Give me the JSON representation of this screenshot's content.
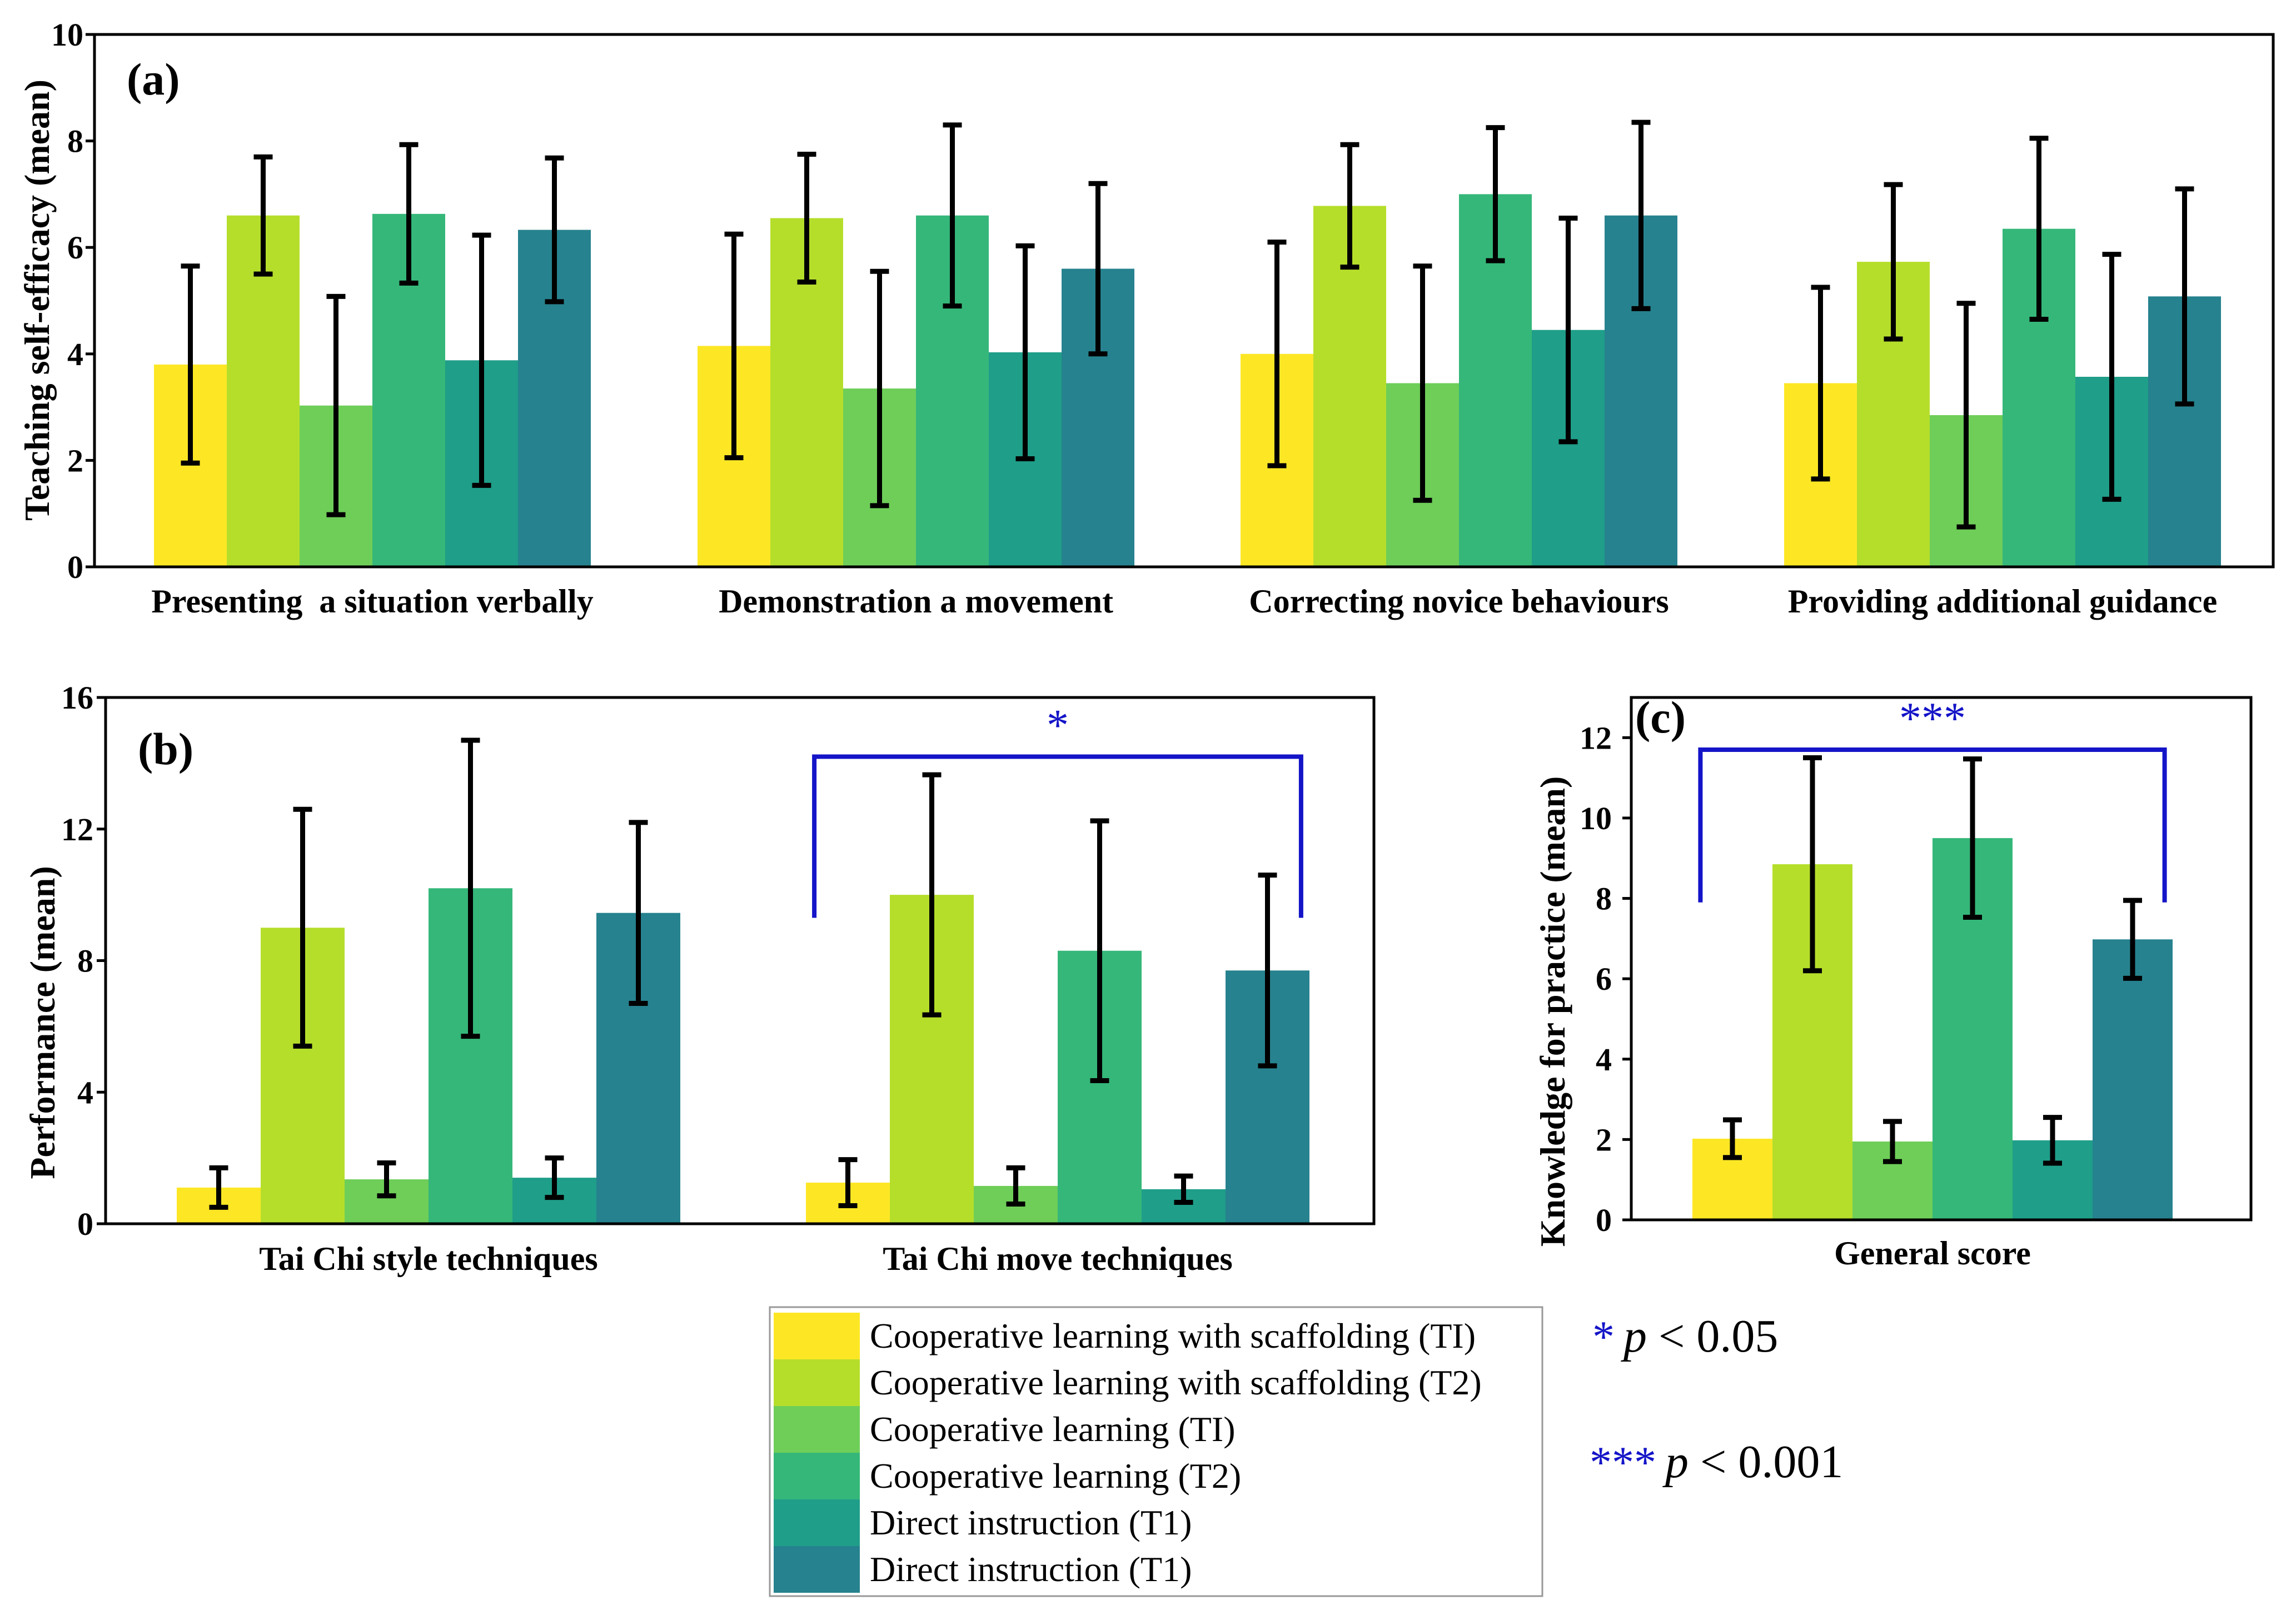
{
  "colors": {
    "series": [
      "#fde725",
      "#b5de2b",
      "#6ece58",
      "#35b779",
      "#1f9e89",
      "#26828e"
    ],
    "bracket": "#1414c8",
    "axis": "#000000"
  },
  "chart_data": [
    {
      "id": "a",
      "type": "bar",
      "panel_label": "(a)",
      "ylabel": "Teaching self-efficacy (mean)",
      "ylim": [
        0,
        10
      ],
      "yticks": [
        0,
        2,
        4,
        6,
        8,
        10
      ],
      "categories": [
        "Presenting  a situation verbally",
        "Demonstration a movement",
        "Correcting novice behaviours",
        "Providing additional guidance"
      ],
      "series": [
        {
          "name": "Cooperative learning with scaffolding (TI)",
          "values": [
            3.8,
            4.15,
            4.0,
            3.45
          ],
          "errors": [
            1.85,
            2.1,
            2.1,
            1.8
          ]
        },
        {
          "name": "Cooperative learning with scaffolding (T2)",
          "values": [
            6.6,
            6.55,
            6.78,
            5.73
          ],
          "errors": [
            1.1,
            1.2,
            1.15,
            1.45
          ]
        },
        {
          "name": "Cooperative learning (TI)",
          "values": [
            3.03,
            3.35,
            3.45,
            2.85
          ],
          "errors": [
            2.05,
            2.2,
            2.2,
            2.1
          ]
        },
        {
          "name": "Cooperative learning (T2)",
          "values": [
            6.63,
            6.6,
            7.0,
            6.35
          ],
          "errors": [
            1.3,
            1.7,
            1.25,
            1.7
          ]
        },
        {
          "name": "Direct instruction (T1)",
          "values": [
            3.88,
            4.03,
            4.45,
            3.57
          ],
          "errors": [
            2.35,
            2.0,
            2.1,
            2.3
          ]
        },
        {
          "name": "Direct instruction (T1)",
          "values": [
            6.33,
            5.6,
            6.6,
            5.08
          ],
          "errors": [
            1.35,
            1.6,
            1.75,
            2.02
          ]
        }
      ]
    },
    {
      "id": "b",
      "type": "bar",
      "panel_label": "(b)",
      "ylabel": "Performance (mean)",
      "ylim": [
        0,
        16
      ],
      "yticks": [
        0,
        4,
        8,
        12,
        16
      ],
      "categories": [
        "Tai Chi style techniques",
        "Tai Chi move techniques"
      ],
      "series": [
        {
          "name": "Cooperative learning with scaffolding (TI)",
          "values": [
            1.1,
            1.25
          ],
          "errors": [
            0.6,
            0.7
          ]
        },
        {
          "name": "Cooperative learning with scaffolding (T2)",
          "values": [
            9.0,
            10.0
          ],
          "errors": [
            3.6,
            3.65
          ]
        },
        {
          "name": "Cooperative learning (TI)",
          "values": [
            1.35,
            1.15
          ],
          "errors": [
            0.5,
            0.55
          ]
        },
        {
          "name": "Cooperative learning (T2)",
          "values": [
            10.2,
            8.3
          ],
          "errors": [
            4.5,
            3.95
          ]
        },
        {
          "name": "Direct instruction (T1)",
          "values": [
            1.4,
            1.05
          ],
          "errors": [
            0.6,
            0.4
          ]
        },
        {
          "name": "Direct instruction (T1)",
          "values": [
            9.45,
            7.7
          ],
          "errors": [
            2.75,
            2.9
          ]
        }
      ],
      "significance": {
        "category_index": 1,
        "label": "*",
        "bracket_y": 14.2,
        "bracket_leg_y": 9.3
      }
    },
    {
      "id": "c",
      "type": "bar",
      "panel_label": "(c)",
      "ylabel": "Knowledge for practice (mean)",
      "ylim": [
        0,
        13
      ],
      "yticks": [
        0,
        2,
        4,
        6,
        8,
        10,
        12
      ],
      "categories": [
        "General score"
      ],
      "series": [
        {
          "name": "Cooperative learning with scaffolding (TI)",
          "values": [
            2.02
          ],
          "errors": [
            0.47
          ]
        },
        {
          "name": "Cooperative learning with scaffolding (T2)",
          "values": [
            8.85
          ],
          "errors": [
            2.65
          ]
        },
        {
          "name": "Cooperative learning (TI)",
          "values": [
            1.95
          ],
          "errors": [
            0.5
          ]
        },
        {
          "name": "Cooperative learning (T2)",
          "values": [
            9.5
          ],
          "errors": [
            1.97
          ]
        },
        {
          "name": "Direct instruction (T1)",
          "values": [
            1.98
          ],
          "errors": [
            0.57
          ]
        },
        {
          "name": "Direct instruction (T1)",
          "values": [
            6.98
          ],
          "errors": [
            0.97
          ]
        }
      ],
      "significance": {
        "category_index": 0,
        "label": "***",
        "bracket_y": 11.7,
        "bracket_leg_y": 7.9
      }
    }
  ],
  "legend": {
    "items": [
      "Cooperative learning with scaffolding (TI)",
      "Cooperative learning with scaffolding (T2)",
      "Cooperative learning (TI)",
      "Cooperative learning (T2)",
      "Direct instruction (T1)",
      "Direct instruction (T1)"
    ]
  },
  "significance_key": [
    {
      "stars": "*",
      "p_symbol": "p",
      "rest": " < 0.05"
    },
    {
      "stars": "***",
      "p_symbol": "p",
      "rest": " < 0.001"
    }
  ]
}
